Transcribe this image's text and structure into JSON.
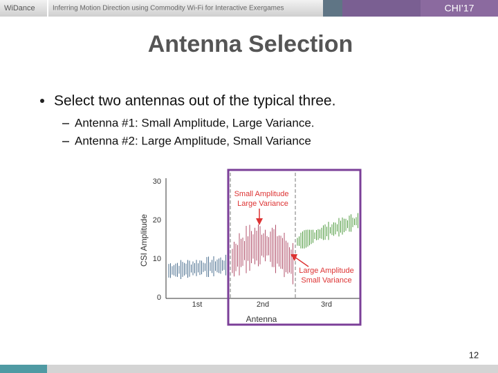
{
  "header": {
    "short_title": "WiDance",
    "title": "Inferring Motion Direction using Commodity Wi-Fi for Interactive Exergames",
    "venue": "CHI’17"
  },
  "slide": {
    "title": "Antenna Selection",
    "bullet": "Select two antennas out of the typical  three.",
    "sub_bullets": [
      "Antenna  #1: Small Amplitude, Large Variance.",
      "Antenna  #2: Large Amplitude, Small Variance"
    ]
  },
  "figure": {
    "y_label": "CSI Amplitude",
    "x_label": "Antenna",
    "y_ticks": [
      "30",
      "20",
      "10",
      "0"
    ],
    "x_ticks": [
      "1st",
      "2nd",
      "3rd"
    ],
    "annotations": [
      "Small Amplitude",
      "Large Variance",
      "Large Amplitude",
      "Small Variance"
    ]
  },
  "page_number": "12"
}
